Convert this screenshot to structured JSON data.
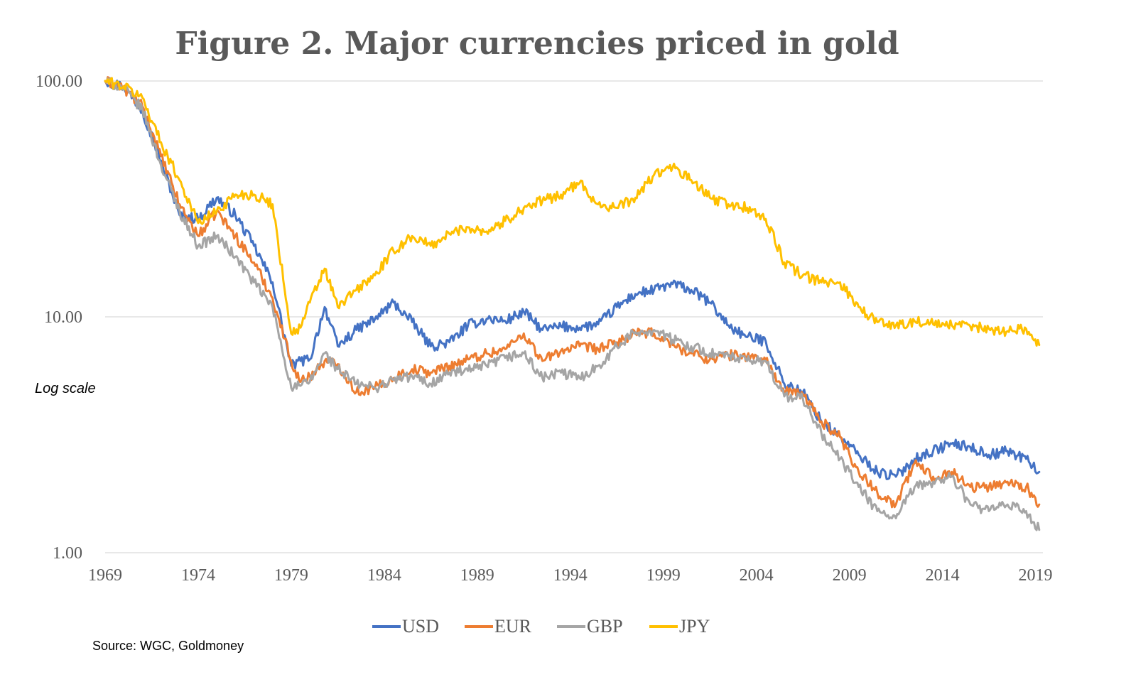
{
  "chart_data": {
    "type": "line",
    "title": "Figure 2.  Major currencies priced in gold",
    "y_scale": "log",
    "ylim": [
      1,
      100
    ],
    "y_ticks": [
      "1.00",
      "10.00",
      "100.00"
    ],
    "xlim": [
      1969,
      2019.4
    ],
    "x_ticks": [
      "1969",
      "1974",
      "1979",
      "1984",
      "1989",
      "1994",
      "1999",
      "2004",
      "2009",
      "2014",
      "2019"
    ],
    "grid": true,
    "legend_position": "bottom",
    "annotation": "Log scale",
    "source": "Source: WGC, Goldmoney",
    "series": [
      {
        "name": "USD",
        "color": "#4472c4",
        "x": [
          1969,
          1970,
          1971,
          1972,
          1973,
          1974,
          1975,
          1976,
          1977,
          1978,
          1979,
          1979.5,
          1980,
          1980.8,
          1981.5,
          1982.5,
          1983.5,
          1984.5,
          1985.5,
          1986.5,
          1987.5,
          1988.5,
          1989.5,
          1990.5,
          1991.5,
          1992.5,
          1993.5,
          1994.5,
          1995.5,
          1996.5,
          1997.5,
          1998.5,
          1999.5,
          2000.5,
          2001.5,
          2002.5,
          2003.5,
          2004.5,
          2005.5,
          2006.5,
          2007.5,
          2008.5,
          2009.5,
          2010.5,
          2011.5,
          2012.5,
          2013.5,
          2014.5,
          2015.5,
          2016.5,
          2017.5,
          2018.5,
          2019.2
        ],
        "values": [
          100,
          95,
          75,
          46,
          27,
          26,
          32,
          27,
          20,
          14,
          6.2,
          6.5,
          6.6,
          11,
          7.5,
          8.8,
          9.8,
          11.5,
          9.5,
          7.5,
          7.8,
          9.2,
          9.8,
          9.6,
          10.5,
          8.8,
          9.1,
          9.0,
          9.3,
          11.0,
          12.5,
          13.0,
          13.8,
          13.0,
          11.5,
          9.2,
          8.2,
          7.9,
          5.2,
          4.8,
          3.6,
          3.1,
          2.6,
          2.2,
          2.1,
          2.5,
          2.7,
          2.9,
          2.8,
          2.6,
          2.7,
          2.5,
          2.2
        ]
      },
      {
        "name": "EUR",
        "color": "#ed7d31",
        "x": [
          1969,
          1970,
          1971,
          1972,
          1973,
          1974,
          1975,
          1976,
          1977,
          1978,
          1979,
          1979.5,
          1980,
          1980.8,
          1981.5,
          1982.5,
          1983.5,
          1984.5,
          1985.5,
          1986.5,
          1987.5,
          1988.5,
          1989.5,
          1990.5,
          1991.5,
          1992.5,
          1993.5,
          1994.5,
          1995.5,
          1996.5,
          1997.5,
          1998.5,
          1999.5,
          2000.5,
          2001.5,
          2002.5,
          2003.5,
          2004.5,
          2005.5,
          2006.5,
          2007.5,
          2008.5,
          2009.5,
          2010.5,
          2011.5,
          2012.5,
          2013.5,
          2014.5,
          2015.5,
          2016.5,
          2017.5,
          2018.5,
          2019.2
        ],
        "values": [
          100,
          93,
          78,
          48,
          30,
          22,
          28,
          22,
          17,
          12,
          6.5,
          5.3,
          5.6,
          6.5,
          6.3,
          4.8,
          5.0,
          5.5,
          6.0,
          5.8,
          6.2,
          6.6,
          7.0,
          7.3,
          8.5,
          6.5,
          7.2,
          7.5,
          7.3,
          7.8,
          8.5,
          8.5,
          7.6,
          7.0,
          6.6,
          6.9,
          6.8,
          6.6,
          4.8,
          4.7,
          3.6,
          3.1,
          2.2,
          1.8,
          1.6,
          2.4,
          2.1,
          2.2,
          1.9,
          1.9,
          2.0,
          1.9,
          1.6
        ]
      },
      {
        "name": "GBP",
        "color": "#a5a5a5",
        "x": [
          1969,
          1970,
          1971,
          1972,
          1973,
          1974,
          1975,
          1976,
          1977,
          1978,
          1979,
          1979.5,
          1980,
          1980.8,
          1981.5,
          1982.5,
          1983.5,
          1984.5,
          1985.5,
          1986.5,
          1987.5,
          1988.5,
          1989.5,
          1990.5,
          1991.5,
          1992.5,
          1993.5,
          1994.5,
          1995.5,
          1996.5,
          1997.5,
          1998.5,
          1999.5,
          2000.5,
          2001.5,
          2002.5,
          2003.5,
          2004.5,
          2005.5,
          2006.5,
          2007.5,
          2008.5,
          2009.5,
          2010.5,
          2011.5,
          2012.5,
          2013.5,
          2014.5,
          2015.5,
          2016.5,
          2017.5,
          2018.5,
          2019.2
        ],
        "values": [
          100,
          93,
          76,
          44,
          28,
          20,
          22,
          18,
          14,
          11,
          5.0,
          5.1,
          5.3,
          7.0,
          6.0,
          5.2,
          5.0,
          5.4,
          5.6,
          5.2,
          5.8,
          5.9,
          6.2,
          6.7,
          7.0,
          5.5,
          5.8,
          5.5,
          6.2,
          7.5,
          8.6,
          8.8,
          8.0,
          7.5,
          7.0,
          6.8,
          6.5,
          6.5,
          4.6,
          4.5,
          3.2,
          2.5,
          1.9,
          1.5,
          1.4,
          1.9,
          2.0,
          2.1,
          1.6,
          1.5,
          1.6,
          1.5,
          1.25
        ]
      },
      {
        "name": "JPY",
        "color": "#ffc000",
        "x": [
          1969,
          1970,
          1971,
          1972,
          1973,
          1974,
          1975,
          1976,
          1977,
          1978,
          1979,
          1979.5,
          1980,
          1980.8,
          1981.5,
          1982.5,
          1983.5,
          1984.5,
          1985.5,
          1986.5,
          1987.5,
          1988.5,
          1989.5,
          1990.5,
          1991.5,
          1992.5,
          1993.5,
          1994.5,
          1995.5,
          1996.5,
          1997.5,
          1998.5,
          1999.5,
          2000.5,
          2001.5,
          2002.5,
          2003.5,
          2004.5,
          2005.5,
          2006.5,
          2007.5,
          2008.5,
          2009.5,
          2010.5,
          2011.5,
          2012.5,
          2013.5,
          2014.5,
          2015.5,
          2016.5,
          2017.5,
          2018.5,
          2019.2
        ],
        "values": [
          100,
          95,
          85,
          55,
          38,
          25,
          28,
          33,
          33,
          30,
          8.5,
          9.0,
          11.5,
          16.0,
          11.0,
          13.0,
          15.0,
          19.0,
          22.0,
          20.0,
          22.5,
          24.0,
          23.0,
          25.5,
          29.0,
          31.0,
          33.0,
          37.0,
          30.0,
          29.0,
          32.0,
          40.0,
          43.0,
          38.0,
          32.0,
          30.0,
          29.0,
          26.0,
          17.0,
          15.0,
          14.0,
          14.0,
          11.0,
          9.5,
          9.2,
          9.6,
          9.3,
          9.2,
          9.1,
          8.9,
          8.7,
          8.9,
          7.6
        ]
      }
    ]
  }
}
